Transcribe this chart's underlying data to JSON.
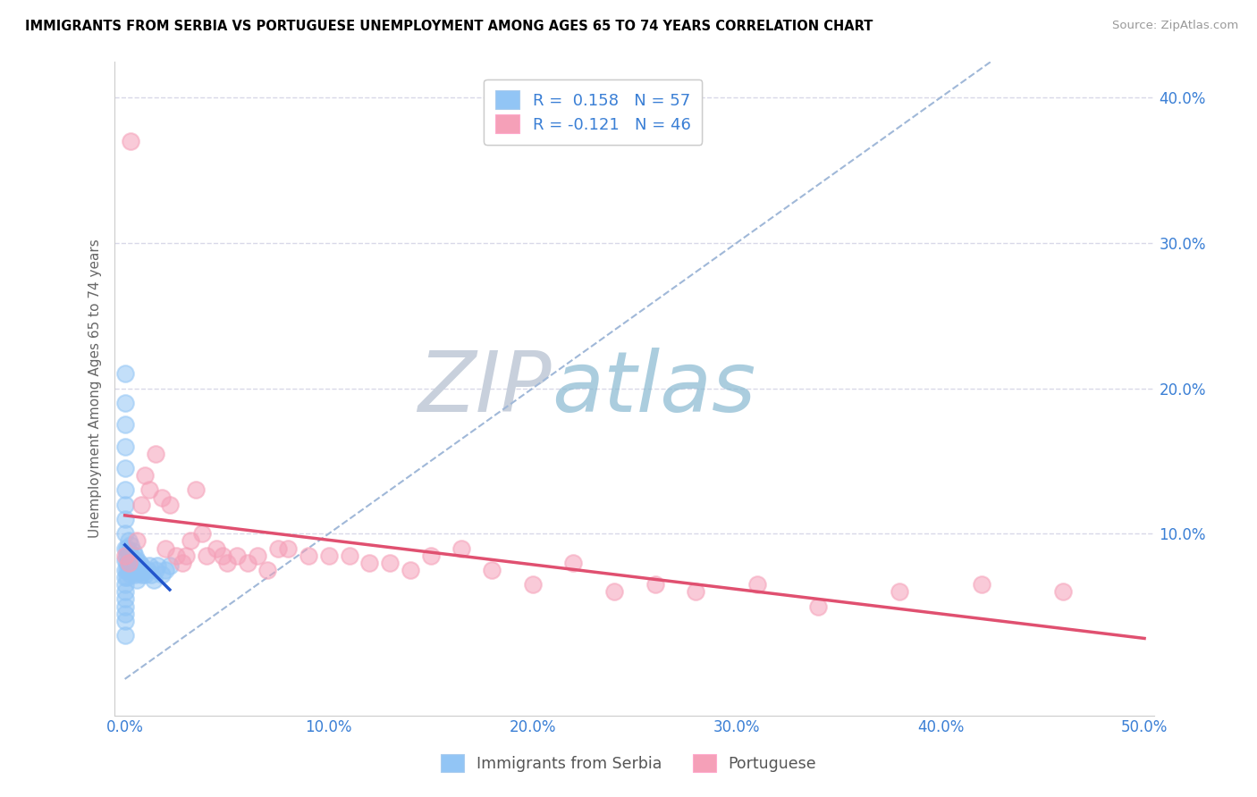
{
  "title": "IMMIGRANTS FROM SERBIA VS PORTUGUESE UNEMPLOYMENT AMONG AGES 65 TO 74 YEARS CORRELATION CHART",
  "source": "Source: ZipAtlas.com",
  "ylabel": "Unemployment Among Ages 65 to 74 years",
  "xlabel_Serbia": "Immigrants from Serbia",
  "xlabel_Portuguese": "Portuguese",
  "xlim": [
    -0.005,
    0.505
  ],
  "ylim": [
    -0.025,
    0.425
  ],
  "xticks": [
    0.0,
    0.1,
    0.2,
    0.3,
    0.4,
    0.5
  ],
  "yticks": [
    0.1,
    0.2,
    0.3,
    0.4
  ],
  "xticklabels": [
    "0.0%",
    "10.0%",
    "20.0%",
    "30.0%",
    "40.0%",
    "50.0%"
  ],
  "yticklabels": [
    "10.0%",
    "20.0%",
    "30.0%",
    "40.0%"
  ],
  "R_serbia": 0.158,
  "N_serbia": 57,
  "R_portuguese": -0.121,
  "N_portuguese": 46,
  "color_serbia": "#92c5f5",
  "color_portuguese": "#f5a0b8",
  "trendline_color_serbia": "#2255cc",
  "trendline_color_portuguese": "#e05070",
  "diag_line_color": "#a0b8d8",
  "text_color_blue": "#3a7fd5",
  "watermark_zip_color": "#c5cfe0",
  "watermark_atlas_color": "#7ab0d0",
  "serbia_x": [
    0.0,
    0.0,
    0.0,
    0.0,
    0.0,
    0.0,
    0.0,
    0.0,
    0.0,
    0.0,
    0.0,
    0.0,
    0.0,
    0.0,
    0.0,
    0.0,
    0.0,
    0.0,
    0.0,
    0.0,
    0.001,
    0.001,
    0.001,
    0.001,
    0.001,
    0.002,
    0.002,
    0.002,
    0.002,
    0.003,
    0.003,
    0.003,
    0.003,
    0.004,
    0.004,
    0.004,
    0.005,
    0.005,
    0.005,
    0.006,
    0.006,
    0.006,
    0.007,
    0.007,
    0.008,
    0.008,
    0.009,
    0.01,
    0.011,
    0.012,
    0.013,
    0.014,
    0.015,
    0.016,
    0.018,
    0.02,
    0.022
  ],
  "serbia_y": [
    0.21,
    0.19,
    0.175,
    0.16,
    0.145,
    0.13,
    0.12,
    0.11,
    0.1,
    0.09,
    0.082,
    0.075,
    0.07,
    0.065,
    0.06,
    0.055,
    0.05,
    0.045,
    0.04,
    0.03,
    0.09,
    0.085,
    0.08,
    0.075,
    0.07,
    0.095,
    0.088,
    0.082,
    0.075,
    0.092,
    0.085,
    0.078,
    0.072,
    0.088,
    0.082,
    0.075,
    0.085,
    0.078,
    0.072,
    0.082,
    0.075,
    0.068,
    0.08,
    0.073,
    0.078,
    0.072,
    0.075,
    0.072,
    0.075,
    0.078,
    0.072,
    0.068,
    0.075,
    0.078,
    0.072,
    0.075,
    0.078
  ],
  "portuguese_x": [
    0.003,
    0.008,
    0.01,
    0.012,
    0.015,
    0.018,
    0.02,
    0.022,
    0.025,
    0.028,
    0.03,
    0.032,
    0.035,
    0.038,
    0.04,
    0.045,
    0.048,
    0.05,
    0.055,
    0.06,
    0.065,
    0.07,
    0.075,
    0.08,
    0.09,
    0.1,
    0.11,
    0.12,
    0.13,
    0.14,
    0.15,
    0.165,
    0.18,
    0.2,
    0.22,
    0.24,
    0.26,
    0.28,
    0.31,
    0.34,
    0.38,
    0.42,
    0.46,
    0.0,
    0.002,
    0.006
  ],
  "portuguese_y": [
    0.37,
    0.12,
    0.14,
    0.13,
    0.155,
    0.125,
    0.09,
    0.12,
    0.085,
    0.08,
    0.085,
    0.095,
    0.13,
    0.1,
    0.085,
    0.09,
    0.085,
    0.08,
    0.085,
    0.08,
    0.085,
    0.075,
    0.09,
    0.09,
    0.085,
    0.085,
    0.085,
    0.08,
    0.08,
    0.075,
    0.085,
    0.09,
    0.075,
    0.065,
    0.08,
    0.06,
    0.065,
    0.06,
    0.065,
    0.05,
    0.06,
    0.065,
    0.06,
    0.085,
    0.08,
    0.095
  ]
}
